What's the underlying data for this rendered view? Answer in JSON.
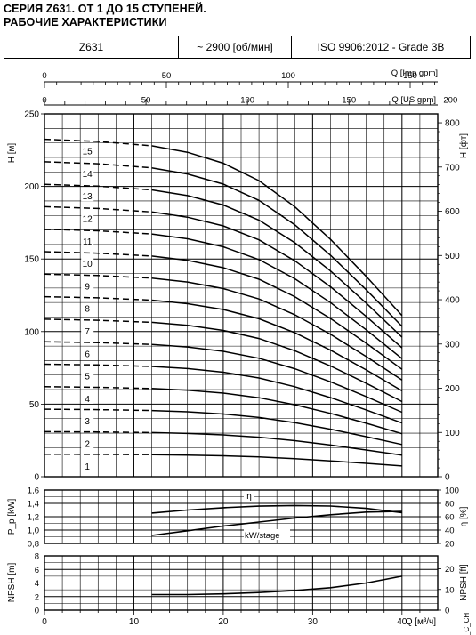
{
  "title_line1": "СЕРИЯ Z631. ОТ 1 ДО 15 СТУПЕНЕЙ.",
  "title_line2": "РАБОЧИЕ ХАРАКТЕРИСТИКИ",
  "header": {
    "model": "Z631",
    "speed": "~ 2900 [об/мин]",
    "standard": "ISO 9906:2012 - Grade 3B"
  },
  "side_code": "_C_CH",
  "chart_data": [
    {
      "type": "line",
      "name": "head",
      "x_axis_label": "Q [м³/ч]",
      "x_ticks": [
        0,
        10,
        20,
        30,
        40
      ],
      "xlim": [
        0,
        44
      ],
      "top_axis_imp": {
        "label": "Q [Imp gpm]",
        "ticks": [
          0,
          50,
          100,
          150
        ]
      },
      "top_axis_us": {
        "label": "Q [US gpm]",
        "ticks": [
          0,
          50,
          100,
          150,
          200
        ]
      },
      "ylabel": "H [м]",
      "ylim": [
        0,
        250
      ],
      "y_ticks": [
        0,
        50,
        100,
        150,
        200,
        250
      ],
      "y2label": "H [фт]",
      "y2_ticks": [
        0,
        100,
        200,
        300,
        400,
        500,
        600,
        700,
        800
      ],
      "dashed_range": [
        0,
        12
      ],
      "solid_range": [
        12,
        40
      ],
      "x": [
        0,
        6,
        12,
        16,
        20,
        24,
        28,
        32,
        36,
        40
      ],
      "stage_labels": [
        "1",
        "2",
        "3",
        "4",
        "5",
        "6",
        "7",
        "8",
        "9",
        "10",
        "11",
        "12",
        "13",
        "14",
        "15"
      ],
      "stages": [
        {
          "label": "1",
          "values": [
            15.5,
            15.4,
            15.2,
            14.9,
            14.4,
            13.6,
            12.4,
            10.9,
            9.2,
            7.4
          ]
        },
        {
          "label": "2",
          "values": [
            31,
            30.8,
            30.4,
            29.8,
            28.8,
            27.2,
            24.8,
            21.8,
            18.4,
            14.8
          ]
        },
        {
          "label": "3",
          "values": [
            46.5,
            46.2,
            45.6,
            44.7,
            43.2,
            40.8,
            37.2,
            32.7,
            27.6,
            22.2
          ]
        },
        {
          "label": "4",
          "values": [
            62,
            61.6,
            60.8,
            59.6,
            57.6,
            54.4,
            49.6,
            43.6,
            36.8,
            29.6
          ]
        },
        {
          "label": "5",
          "values": [
            77.5,
            77,
            76,
            74.5,
            72,
            68,
            62,
            54.5,
            46,
            37
          ]
        },
        {
          "label": "6",
          "values": [
            93,
            92.4,
            91.2,
            89.4,
            86.4,
            81.6,
            74.4,
            65.4,
            55.2,
            44.4
          ]
        },
        {
          "label": "7",
          "values": [
            108.5,
            107.8,
            106.4,
            104.3,
            100.8,
            95.2,
            86.8,
            76.3,
            64.4,
            51.8
          ]
        },
        {
          "label": "8",
          "values": [
            124,
            123.2,
            121.6,
            119.2,
            115.2,
            108.8,
            99.2,
            87.2,
            73.6,
            59.2
          ]
        },
        {
          "label": "9",
          "values": [
            139.5,
            138.6,
            136.8,
            134.1,
            129.6,
            122.4,
            111.6,
            98.1,
            82.8,
            66.6
          ]
        },
        {
          "label": "10",
          "values": [
            155,
            154,
            152,
            149,
            144,
            136,
            124,
            109,
            92,
            74
          ]
        },
        {
          "label": "11",
          "values": [
            170.5,
            169.4,
            167.2,
            163.9,
            158.4,
            149.6,
            136.4,
            119.9,
            101.2,
            81.4
          ]
        },
        {
          "label": "12",
          "values": [
            186,
            184.8,
            182.4,
            178.8,
            172.8,
            163.2,
            148.8,
            130.8,
            110.4,
            88.8
          ]
        },
        {
          "label": "13",
          "values": [
            201.5,
            200.2,
            197.6,
            193.7,
            187.2,
            176.8,
            161.2,
            141.7,
            119.6,
            96.2
          ]
        },
        {
          "label": "14",
          "values": [
            217,
            215.6,
            212.8,
            208.6,
            201.6,
            190.4,
            173.6,
            152.6,
            128.8,
            103.6
          ]
        },
        {
          "label": "15",
          "values": [
            232.5,
            231,
            228,
            223.5,
            216,
            204,
            186,
            163.5,
            138,
            111
          ]
        }
      ]
    },
    {
      "type": "line",
      "name": "power_efficiency",
      "ylabel": "P_p [kW]",
      "ylim": [
        0.8,
        1.6
      ],
      "y_ticks": [
        "0,8",
        "1,0",
        "1,2",
        "1,4",
        "1,6"
      ],
      "y2label": "η [%]",
      "y2lim": [
        20,
        100
      ],
      "y2_ticks": [
        20,
        40,
        60,
        80,
        100
      ],
      "series": [
        {
          "name": "η",
          "axis": "right",
          "x": [
            12,
            16,
            20,
            24,
            28,
            32,
            36,
            40
          ],
          "values": [
            65.5,
            70,
            73.5,
            75.8,
            76.8,
            76,
            72.5,
            66
          ]
        },
        {
          "name": "kW/stage",
          "axis": "left",
          "x": [
            12,
            16,
            20,
            24,
            28,
            32,
            36,
            40
          ],
          "values": [
            0.92,
            0.99,
            1.06,
            1.12,
            1.18,
            1.23,
            1.27,
            1.28
          ]
        }
      ]
    },
    {
      "type": "line",
      "name": "npsh",
      "ylabel": "NPSH [m]",
      "ylim": [
        0,
        8
      ],
      "y_ticks": [
        0,
        2,
        4,
        6,
        8
      ],
      "y2label": "NPSH [ft]",
      "y2_ticks": [
        0,
        10,
        20
      ],
      "series": [
        {
          "name": "NPSH",
          "x": [
            12,
            16,
            20,
            24,
            28,
            32,
            36,
            40
          ],
          "values": [
            2.3,
            2.3,
            2.4,
            2.6,
            2.9,
            3.3,
            4.0,
            5.0
          ]
        }
      ]
    }
  ]
}
